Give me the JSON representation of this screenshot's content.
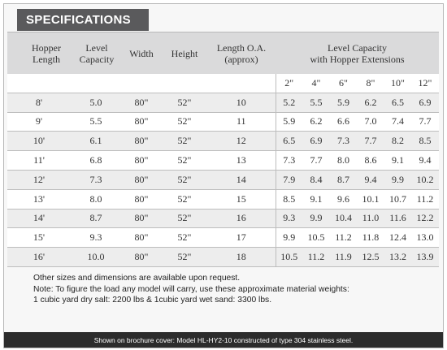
{
  "title": "SPECIFICATIONS",
  "columns": {
    "hopper_length": [
      "Hopper",
      "Length"
    ],
    "level_capacity": [
      "Level",
      "Capacity"
    ],
    "width": "Width",
    "height": "Height",
    "length_oa": [
      "Length O.A.",
      "(approx)"
    ],
    "level_capacity_ext": [
      "Level Capacity",
      "with Hopper Extensions"
    ]
  },
  "extension_sizes": [
    "2\"",
    "4\"",
    "6\"",
    "8\"",
    "10\"",
    "12\""
  ],
  "rows": [
    {
      "hopper_length": "8'",
      "level_capacity": "5.0",
      "width": "80\"",
      "height": "52\"",
      "length_oa": "10",
      "ext": [
        "5.2",
        "5.5",
        "5.9",
        "6.2",
        "6.5",
        "6.9"
      ]
    },
    {
      "hopper_length": "9'",
      "level_capacity": "5.5",
      "width": "80\"",
      "height": "52\"",
      "length_oa": "11",
      "ext": [
        "5.9",
        "6.2",
        "6.6",
        "7.0",
        "7.4",
        "7.7"
      ]
    },
    {
      "hopper_length": "10'",
      "level_capacity": "6.1",
      "width": "80\"",
      "height": "52\"",
      "length_oa": "12",
      "ext": [
        "6.5",
        "6.9",
        "7.3",
        "7.7",
        "8.2",
        "8.5"
      ]
    },
    {
      "hopper_length": "11'",
      "level_capacity": "6.8",
      "width": "80\"",
      "height": "52\"",
      "length_oa": "13",
      "ext": [
        "7.3",
        "7.7",
        "8.0",
        "8.6",
        "9.1",
        "9.4"
      ]
    },
    {
      "hopper_length": "12'",
      "level_capacity": "7.3",
      "width": "80\"",
      "height": "52\"",
      "length_oa": "14",
      "ext": [
        "7.9",
        "8.4",
        "8.7",
        "9.4",
        "9.9",
        "10.2"
      ]
    },
    {
      "hopper_length": "13'",
      "level_capacity": "8.0",
      "width": "80\"",
      "height": "52\"",
      "length_oa": "15",
      "ext": [
        "8.5",
        "9.1",
        "9.6",
        "10.1",
        "10.7",
        "11.2"
      ]
    },
    {
      "hopper_length": "14'",
      "level_capacity": "8.7",
      "width": "80\"",
      "height": "52\"",
      "length_oa": "16",
      "ext": [
        "9.3",
        "9.9",
        "10.4",
        "11.0",
        "11.6",
        "12.2"
      ]
    },
    {
      "hopper_length": "15'",
      "level_capacity": "9.3",
      "width": "80\"",
      "height": "52\"",
      "length_oa": "17",
      "ext": [
        "9.9",
        "10.5",
        "11.2",
        "11.8",
        "12.4",
        "13.0"
      ]
    },
    {
      "hopper_length": "16'",
      "level_capacity": "10.0",
      "width": "80\"",
      "height": "52\"",
      "length_oa": "18",
      "ext": [
        "10.5",
        "11.2",
        "11.9",
        "12.5",
        "13.2",
        "13.9"
      ]
    }
  ],
  "notes": [
    "Other sizes and dimensions are available upon request.",
    "Note: To figure the load any model will carry, use these approximate material weights:",
    "1 cubic yard dry salt: 2200 lbs & 1cubic yard wet sand: 3300 lbs."
  ],
  "footer": "Shown on brochure cover: Model HL-HY2-10 constructed of type 304 stainless steel."
}
